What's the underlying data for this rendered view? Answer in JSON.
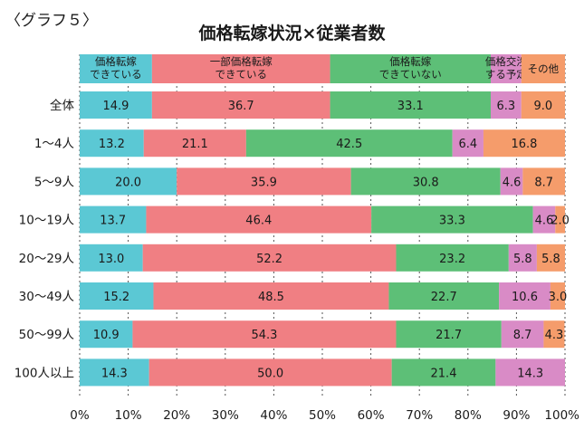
{
  "figure_label": "〈グラフ５〉",
  "chart_data": {
    "type": "bar",
    "orientation": "horizontal",
    "stacked": true,
    "normalized": true,
    "title": "価格転嫁状況×従業者数",
    "categories": [
      "全体",
      "1〜4人",
      "5〜9人",
      "10〜19人",
      "20〜29人",
      "30〜49人",
      "50〜99人",
      "100人以上"
    ],
    "series": [
      {
        "name": "価格転嫁\nできている",
        "color": "#5bc8d4",
        "values": [
          14.9,
          13.2,
          20.0,
          13.7,
          13.0,
          15.2,
          10.9,
          14.3
        ],
        "labels": [
          "14.9",
          "13.2",
          "20.0",
          "13.7",
          "13.0",
          "15.2",
          "10.9",
          "14.3"
        ]
      },
      {
        "name": "一部価格転嫁\nできている",
        "color": "#f07f83",
        "values": [
          36.7,
          21.1,
          35.9,
          46.4,
          52.2,
          48.5,
          54.3,
          50.0
        ],
        "labels": [
          "36.7",
          "21.1",
          "35.9",
          "46.4",
          "52.2",
          "48.5",
          "54.3",
          "50.0"
        ]
      },
      {
        "name": "価格転嫁\nできていない",
        "color": "#5dbf77",
        "values": [
          33.1,
          42.5,
          30.8,
          33.3,
          23.2,
          22.7,
          21.7,
          21.4
        ],
        "labels": [
          "33.1",
          "42.5",
          "30.8",
          "33.3",
          "23.2",
          "22.7",
          "21.7",
          "21.4"
        ]
      },
      {
        "name": "価格交渉\nする予定",
        "color": "#d98bc6",
        "values": [
          6.3,
          6.4,
          4.6,
          4.6,
          5.8,
          10.6,
          8.7,
          14.3
        ],
        "labels": [
          "6.3",
          "6.4",
          "4.6",
          "4.6",
          "5.8",
          "10.6",
          "8.7",
          "14.3"
        ]
      },
      {
        "name": "その他",
        "color": "#f59c6b",
        "values": [
          9.0,
          16.8,
          8.7,
          2.0,
          5.8,
          3.0,
          4.3,
          0
        ],
        "labels": [
          "9.0",
          "16.8",
          "8.7",
          "2.0",
          "5.8",
          "3.0",
          "4.3",
          ""
        ]
      }
    ],
    "xlim": [
      0,
      100
    ],
    "xticks": [
      "0%",
      "10%",
      "20%",
      "30%",
      "40%",
      "50%",
      "60%",
      "70%",
      "80%",
      "90%",
      "100%"
    ],
    "grid": "vertical-dashed",
    "legend": "top"
  }
}
